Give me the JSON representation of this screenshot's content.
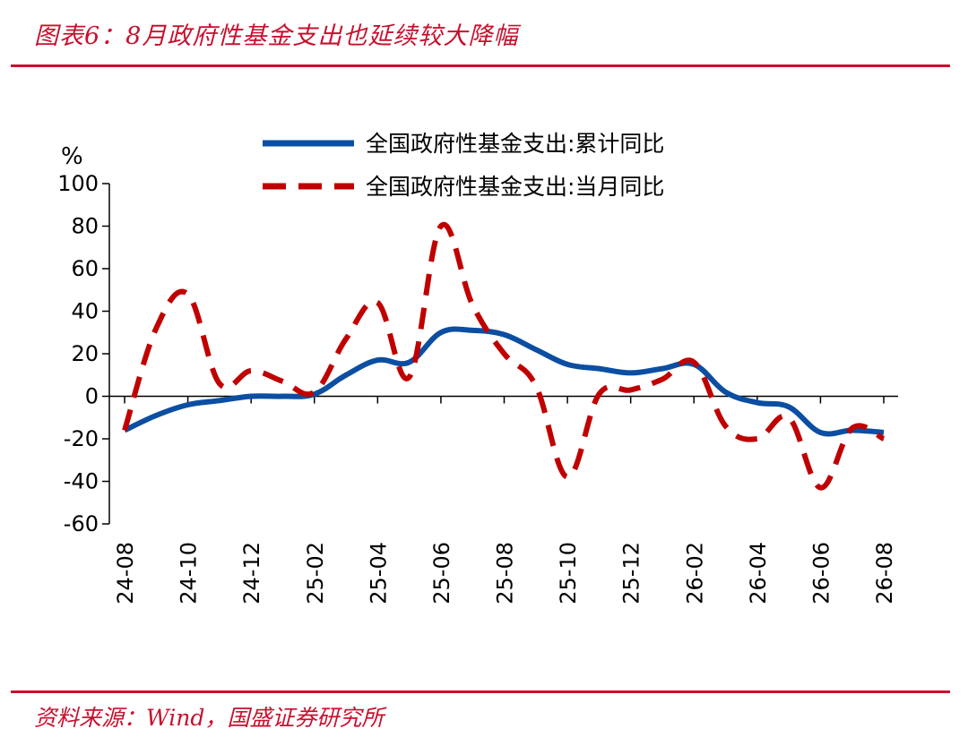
{
  "figure": {
    "title": "图表6：8月政府性基金支出也延续较大降幅",
    "source": "资料来源：Wind，国盛证券研究所"
  },
  "chart_data": {
    "type": "line",
    "ylabel": "%",
    "ylim": [
      -60,
      100
    ],
    "yticks": [
      100,
      80,
      60,
      40,
      20,
      0,
      -20,
      -40,
      -60
    ],
    "x": [
      "24-08",
      "24-09",
      "24-10",
      "24-11",
      "24-12",
      "25-01",
      "25-02",
      "25-03",
      "25-04",
      "25-05",
      "25-06",
      "25-07",
      "25-08",
      "25-09",
      "25-10",
      "25-11",
      "25-12",
      "26-01",
      "26-02",
      "26-03",
      "26-04",
      "26-05",
      "26-06",
      "26-07",
      "26-08"
    ],
    "xtick_labels": [
      "24-08",
      "24-10",
      "24-12",
      "25-02",
      "25-04",
      "25-06",
      "25-08",
      "25-10",
      "25-12",
      "26-02",
      "26-04",
      "26-06",
      "26-08"
    ],
    "legend_position": "top-right",
    "grid": false,
    "series": [
      {
        "name": "全国政府性基金支出:累计同比",
        "color": "#0b4ea2",
        "style": "solid",
        "values": [
          -16,
          -9,
          -4,
          -2,
          0,
          0,
          1,
          10,
          17,
          16,
          30,
          31,
          29,
          22,
          15,
          13,
          11,
          13,
          15,
          2,
          -3,
          -5,
          -17,
          -16,
          -17
        ]
      },
      {
        "name": "全国政府性基金支出:当月同比",
        "color": "#c00000",
        "style": "dashed",
        "values": [
          -16,
          32,
          48,
          6,
          12,
          7,
          2,
          27,
          44,
          9,
          80,
          43,
          20,
          5,
          -38,
          1,
          3,
          8,
          16,
          -14,
          -20,
          -10,
          -43,
          -15,
          -20
        ]
      }
    ]
  }
}
